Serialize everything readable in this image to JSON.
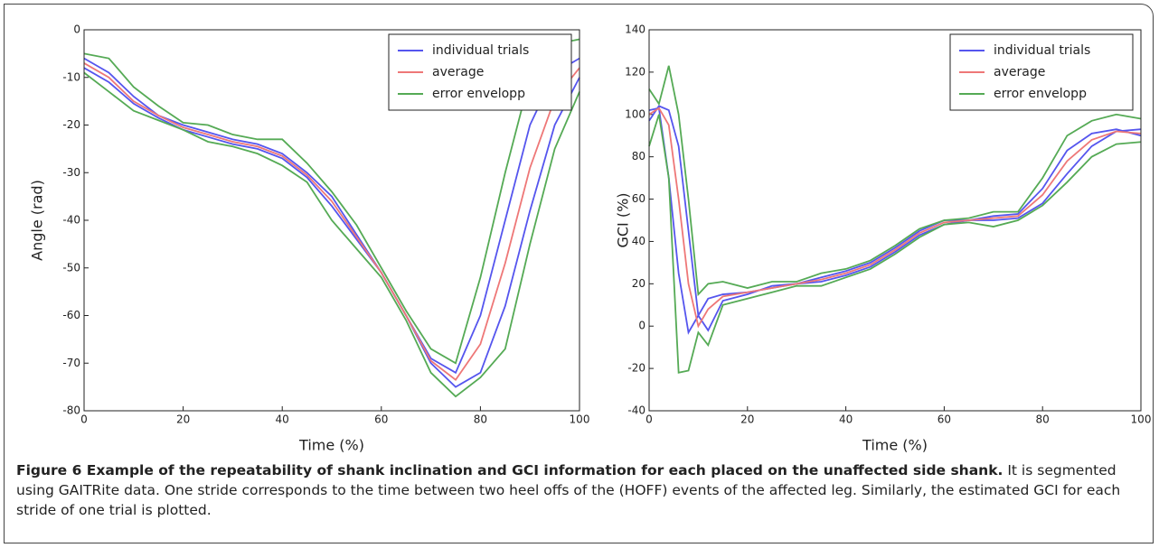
{
  "chart_data": [
    {
      "type": "line",
      "xlabel": "Time (%)",
      "ylabel": "Angle (rad)",
      "x": [
        0,
        5,
        10,
        15,
        20,
        25,
        30,
        35,
        40,
        45,
        50,
        55,
        60,
        65,
        70,
        75,
        80,
        85,
        90,
        95,
        100
      ],
      "xlim": [
        0,
        100
      ],
      "xticks": [
        0,
        20,
        40,
        60,
        80,
        100
      ],
      "ylim": [
        -80,
        0
      ],
      "yticks": [
        -80,
        -70,
        -60,
        -50,
        -40,
        -30,
        -20,
        -10,
        0
      ],
      "legend": "upper right",
      "series": [
        {
          "name": "individual trials",
          "color": "#5555ee",
          "trials": [
            [
              -6,
              -9,
              -14,
              -18,
              -20,
              -21.5,
              -23,
              -24,
              -26,
              -30,
              -35,
              -43,
              -51,
              -60,
              -69,
              -72,
              -60,
              -40,
              -20,
              -9,
              -6
            ],
            [
              -8,
              -11,
              -15.5,
              -18.5,
              -21,
              -22.5,
              -24,
              -25,
              -27,
              -31,
              -37,
              -44,
              -51,
              -60,
              -70,
              -75,
              -72,
              -58,
              -38,
              -20,
              -10
            ]
          ]
        },
        {
          "name": "average",
          "color": "#ee7777",
          "values": [
            -7,
            -10,
            -15,
            -18,
            -20.5,
            -22,
            -23.5,
            -24.5,
            -26.5,
            -30.5,
            -36,
            -43.5,
            -51,
            -60,
            -69.5,
            -73.5,
            -66,
            -49,
            -29,
            -14.5,
            -8
          ]
        },
        {
          "name": "error envelopp",
          "color": "#55aa55",
          "upper": [
            -5,
            -6,
            -12,
            -16,
            -19.5,
            -20,
            -22,
            -23,
            -23,
            -28,
            -34,
            -41,
            -50,
            -59,
            -67,
            -70,
            -52,
            -30,
            -10,
            -3,
            -2
          ],
          "lower": [
            -9,
            -13,
            -17,
            -19,
            -21,
            -23.5,
            -24.5,
            -26,
            -28.5,
            -32,
            -40,
            -46,
            -52,
            -61,
            -72,
            -77,
            -73,
            -67,
            -45,
            -25,
            -13
          ]
        }
      ]
    },
    {
      "type": "line",
      "xlabel": "Time (%)",
      "ylabel": "GCI (%)",
      "x": [
        0,
        2,
        4,
        6,
        8,
        10,
        12,
        15,
        20,
        25,
        30,
        35,
        40,
        45,
        50,
        55,
        60,
        65,
        70,
        75,
        80,
        85,
        90,
        95,
        100
      ],
      "xlim": [
        0,
        100
      ],
      "xticks": [
        0,
        20,
        40,
        60,
        80,
        100
      ],
      "ylim": [
        -40,
        140
      ],
      "yticks": [
        -40,
        -20,
        0,
        20,
        40,
        60,
        80,
        100,
        120,
        140
      ],
      "legend": "upper right",
      "series": [
        {
          "name": "individual trials",
          "color": "#5555ee",
          "trials": [
            [
              102,
              103,
              70,
              25,
              -3,
              5,
              13,
              15,
              16,
              18,
              20,
              21,
              24,
              28,
              35,
              43,
              48,
              50,
              50,
              51,
              58,
              72,
              85,
              92,
              93
            ],
            [
              97,
              104,
              102,
              85,
              45,
              5,
              -2,
              12,
              15,
              19,
              20,
              23,
              26,
              30,
              37,
              45,
              50,
              50,
              52,
              53,
              65,
              83,
              91,
              93,
              90
            ]
          ]
        },
        {
          "name": "average",
          "color": "#ee7777",
          "values": [
            100,
            103,
            95,
            60,
            20,
            0,
            8,
            14,
            16,
            18,
            20,
            22,
            25,
            29,
            36,
            44,
            49,
            50,
            51,
            52,
            62,
            78,
            88,
            92,
            91
          ]
        },
        {
          "name": "error envelopp",
          "color": "#55aa55",
          "upper": [
            112,
            105,
            123,
            100,
            60,
            15,
            20,
            21,
            18,
            21,
            21,
            25,
            27,
            31,
            38,
            46,
            50,
            51,
            54,
            54,
            70,
            90,
            97,
            100,
            98
          ],
          "lower": [
            85,
            100,
            70,
            -22,
            -21,
            -3,
            -9,
            10,
            13,
            16,
            19,
            19,
            23,
            27,
            34,
            42,
            48,
            49,
            47,
            50,
            57,
            68,
            80,
            86,
            87
          ]
        }
      ]
    }
  ],
  "caption": {
    "title": "Figure 6 Example of the repeatability of shank inclination and GCI information for each placed on the unaffected side shank.",
    "text": "It is segmented using GAITRite data. One stride corresponds to the time between two heel offs of the (HOFF) events of the affected leg. Similarly, the estimated GCI for each stride of one trial is plotted."
  }
}
